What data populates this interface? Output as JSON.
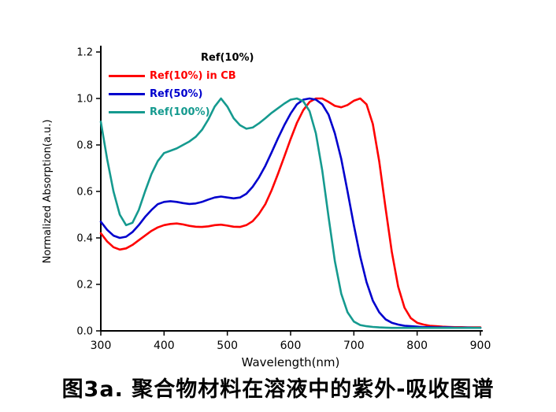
{
  "caption": "图3a. 聚合物材料在溶液中的紫外-吸收图谱",
  "legend": {
    "entries": [
      {
        "label": "Ref(10%)",
        "color": "#000000",
        "swatch": false
      },
      {
        "label": "Ref(10%) in CB",
        "color": "#fe0000",
        "swatch": true
      },
      {
        "label": "Ref(50%)",
        "color": "#0000cd",
        "swatch": true
      },
      {
        "label": "Ref(100%)",
        "color": "#159a8f",
        "swatch": true
      }
    ]
  },
  "chart_data": {
    "type": "line",
    "title": "",
    "xlabel": "Wavelength(nm)",
    "ylabel": "Normalized Absorption(a.u.)",
    "xlim": [
      300,
      900
    ],
    "ylim": [
      0,
      1.2
    ],
    "xticks": [
      300,
      400,
      500,
      600,
      700,
      800,
      900
    ],
    "yticks": [
      0.0,
      0.2,
      0.4,
      0.6,
      0.8,
      1.0,
      1.2
    ],
    "grid": false,
    "legend_position": "top-left",
    "x": [
      300,
      310,
      320,
      330,
      340,
      350,
      360,
      370,
      380,
      390,
      400,
      410,
      420,
      430,
      440,
      450,
      460,
      470,
      480,
      490,
      500,
      510,
      520,
      530,
      540,
      550,
      560,
      570,
      580,
      590,
      600,
      610,
      620,
      630,
      640,
      650,
      660,
      670,
      680,
      690,
      700,
      710,
      720,
      730,
      740,
      750,
      760,
      770,
      780,
      790,
      800,
      810,
      820,
      830,
      840,
      850,
      860,
      870,
      880,
      890,
      900
    ],
    "series": [
      {
        "name": "Ref(10%) in CB",
        "color": "#fe0000",
        "values": [
          0.42,
          0.385,
          0.36,
          0.35,
          0.355,
          0.37,
          0.39,
          0.41,
          0.43,
          0.445,
          0.455,
          0.46,
          0.462,
          0.458,
          0.452,
          0.448,
          0.447,
          0.45,
          0.455,
          0.457,
          0.453,
          0.448,
          0.447,
          0.455,
          0.472,
          0.503,
          0.545,
          0.605,
          0.675,
          0.75,
          0.825,
          0.895,
          0.95,
          0.985,
          1.0,
          1.0,
          0.985,
          0.968,
          0.962,
          0.972,
          0.99,
          1.0,
          0.975,
          0.89,
          0.73,
          0.53,
          0.34,
          0.19,
          0.1,
          0.055,
          0.035,
          0.027,
          0.022,
          0.02,
          0.018,
          0.017,
          0.016,
          0.016,
          0.015,
          0.015,
          0.015
        ]
      },
      {
        "name": "Ref(50%)",
        "color": "#0000cd",
        "values": [
          0.47,
          0.435,
          0.41,
          0.4,
          0.405,
          0.425,
          0.455,
          0.49,
          0.52,
          0.545,
          0.555,
          0.558,
          0.555,
          0.55,
          0.546,
          0.548,
          0.555,
          0.565,
          0.574,
          0.578,
          0.574,
          0.57,
          0.574,
          0.59,
          0.62,
          0.66,
          0.71,
          0.768,
          0.828,
          0.885,
          0.935,
          0.975,
          0.995,
          1.0,
          0.995,
          0.975,
          0.93,
          0.85,
          0.74,
          0.6,
          0.455,
          0.32,
          0.21,
          0.13,
          0.08,
          0.05,
          0.035,
          0.027,
          0.022,
          0.02,
          0.018,
          0.016,
          0.016,
          0.015,
          0.015,
          0.015,
          0.014,
          0.014,
          0.014,
          0.013,
          0.013
        ]
      },
      {
        "name": "Ref(100%)",
        "color": "#159a8f",
        "values": [
          0.9,
          0.74,
          0.6,
          0.5,
          0.455,
          0.465,
          0.52,
          0.6,
          0.675,
          0.73,
          0.765,
          0.775,
          0.785,
          0.8,
          0.815,
          0.835,
          0.865,
          0.91,
          0.965,
          1.0,
          0.965,
          0.915,
          0.885,
          0.87,
          0.875,
          0.893,
          0.915,
          0.938,
          0.958,
          0.978,
          0.995,
          1.0,
          0.988,
          0.945,
          0.85,
          0.69,
          0.49,
          0.3,
          0.16,
          0.08,
          0.04,
          0.025,
          0.02,
          0.017,
          0.015,
          0.014,
          0.013,
          0.013,
          0.013,
          0.013,
          0.013,
          0.013,
          0.013,
          0.013,
          0.013,
          0.013,
          0.013,
          0.013,
          0.013,
          0.013,
          0.013
        ]
      }
    ]
  }
}
